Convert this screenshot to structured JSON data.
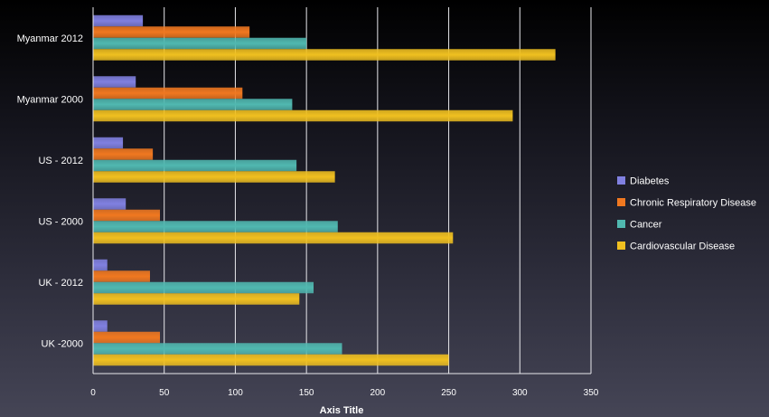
{
  "chart_data": {
    "type": "bar",
    "orientation": "horizontal",
    "title": "",
    "xlabel": "Axis Title",
    "ylabel": "",
    "xlim": [
      0,
      350
    ],
    "x_ticks": [
      0,
      50,
      100,
      150,
      200,
      250,
      300,
      350
    ],
    "grid": true,
    "legend_position": "right",
    "categories": [
      "UK -2000",
      "UK - 2012",
      "US - 2000",
      "US - 2012",
      "Myanmar 2000",
      "Myanmar 2012"
    ],
    "series": [
      {
        "name": "Diabetes",
        "color": "#8080e0",
        "values": [
          10,
          10,
          23,
          21,
          30,
          35
        ]
      },
      {
        "name": "Chronic Respiratory Disease",
        "color": "#f07820",
        "values": [
          47,
          40,
          47,
          42,
          105,
          110
        ]
      },
      {
        "name": "Cancer",
        "color": "#50b8b0",
        "values": [
          175,
          155,
          172,
          143,
          140,
          150
        ]
      },
      {
        "name": "Cardiovascular Disease",
        "color": "#f0c020",
        "values": [
          250,
          145,
          253,
          170,
          295,
          325
        ]
      }
    ]
  }
}
